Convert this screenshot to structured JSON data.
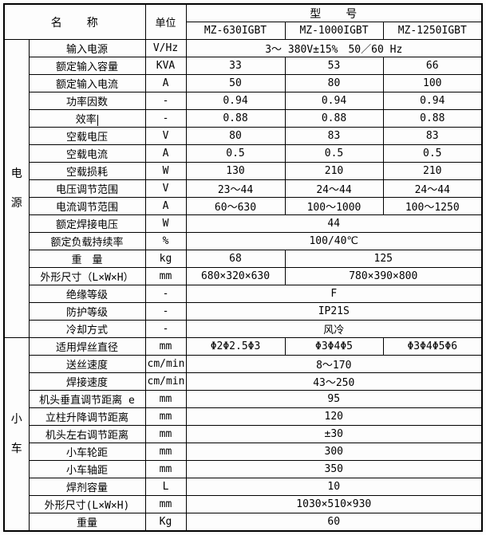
{
  "header": {
    "name_label": "名　　称",
    "unit_label": "单位",
    "model_label": "型　　号",
    "models": [
      "MZ-630IGBT",
      "MZ-1000IGBT",
      "MZ-1250IGBT"
    ]
  },
  "sections": [
    {
      "group": "电源",
      "rows": [
        {
          "name": "输入电源",
          "unit": "V/Hz",
          "values": [
            {
              "text": "3～ 380V±15%　50／60 Hz",
              "span": 3
            }
          ]
        },
        {
          "name": "额定输入容量",
          "unit": "KVA",
          "values": [
            {
              "text": "33",
              "span": 1
            },
            {
              "text": "53",
              "span": 1
            },
            {
              "text": "66",
              "span": 1
            }
          ]
        },
        {
          "name": "额定输入电流",
          "unit": "A",
          "values": [
            {
              "text": "50",
              "span": 1
            },
            {
              "text": "80",
              "span": 1
            },
            {
              "text": "100",
              "span": 1
            }
          ]
        },
        {
          "name": "功率因数",
          "unit": "-",
          "values": [
            {
              "text": "0.94",
              "span": 1
            },
            {
              "text": "0.94",
              "span": 1
            },
            {
              "text": "0.94",
              "span": 1
            }
          ]
        },
        {
          "name": "效率",
          "unit": "-",
          "cursor": true,
          "values": [
            {
              "text": "0.88",
              "span": 1
            },
            {
              "text": "0.88",
              "span": 1
            },
            {
              "text": "0.88",
              "span": 1
            }
          ]
        },
        {
          "name": "空载电压",
          "unit": "V",
          "values": [
            {
              "text": "80",
              "span": 1
            },
            {
              "text": "83",
              "span": 1
            },
            {
              "text": "83",
              "span": 1
            }
          ]
        },
        {
          "name": "空载电流",
          "unit": "A",
          "values": [
            {
              "text": "0.5",
              "span": 1
            },
            {
              "text": "0.5",
              "span": 1
            },
            {
              "text": "0.5",
              "span": 1
            }
          ]
        },
        {
          "name": "空载损耗",
          "unit": "W",
          "values": [
            {
              "text": "130",
              "span": 1
            },
            {
              "text": "210",
              "span": 1
            },
            {
              "text": "210",
              "span": 1
            }
          ]
        },
        {
          "name": "电压调节范围",
          "unit": "V",
          "values": [
            {
              "text": "23～44",
              "span": 1
            },
            {
              "text": "24～44",
              "span": 1
            },
            {
              "text": "24～44",
              "span": 1
            }
          ]
        },
        {
          "name": "电流调节范围",
          "unit": "A",
          "values": [
            {
              "text": "60～630",
              "span": 1
            },
            {
              "text": "100～1000",
              "span": 1
            },
            {
              "text": "100～1250",
              "span": 1
            }
          ]
        },
        {
          "name": "额定焊接电压",
          "unit": "W",
          "values": [
            {
              "text": "44",
              "span": 3
            }
          ]
        },
        {
          "name": "额定负载持续率",
          "unit": "%",
          "values": [
            {
              "text": "100/40℃",
              "span": 3
            }
          ]
        },
        {
          "name": "重　量",
          "unit": "kg",
          "values": [
            {
              "text": "68",
              "span": 1
            },
            {
              "text": "125",
              "span": 2
            }
          ]
        },
        {
          "name": "外形尺寸（L×W×H）",
          "unit": "mm",
          "values": [
            {
              "text": "680×320×630",
              "span": 1
            },
            {
              "text": "780×390×800",
              "span": 2
            }
          ]
        },
        {
          "name": "绝缘等级",
          "unit": "-",
          "values": [
            {
              "text": "F",
              "span": 3
            }
          ]
        },
        {
          "name": "防护等级",
          "unit": "-",
          "values": [
            {
              "text": "IP21S",
              "span": 3
            }
          ]
        },
        {
          "name": "冷却方式",
          "unit": "-",
          "values": [
            {
              "text": "风冷",
              "span": 3
            }
          ]
        }
      ]
    },
    {
      "group": "小车",
      "rows": [
        {
          "name": "适用焊丝直径",
          "unit": "mm",
          "values": [
            {
              "text": "Φ2Φ2.5Φ3",
              "span": 1
            },
            {
              "text": "Φ3Φ4Φ5",
              "span": 1
            },
            {
              "text": "Φ3Φ4Φ5Φ6",
              "span": 1
            }
          ]
        },
        {
          "name": "送丝速度",
          "unit": "cm/min",
          "values": [
            {
              "text": "8～170",
              "span": 3
            }
          ]
        },
        {
          "name": "焊接速度",
          "unit": "cm/min",
          "values": [
            {
              "text": "43～250",
              "span": 3
            }
          ]
        },
        {
          "name": "机头垂直调节距离 e",
          "unit": "mm",
          "values": [
            {
              "text": "95",
              "span": 3
            }
          ]
        },
        {
          "name": "立柱升降调节距离",
          "unit": "mm",
          "values": [
            {
              "text": "120",
              "span": 3
            }
          ]
        },
        {
          "name": "机头左右调节距离",
          "unit": "mm",
          "values": [
            {
              "text": "±30",
              "span": 3
            }
          ]
        },
        {
          "name": "小车轮距",
          "unit": "mm",
          "values": [
            {
              "text": "300",
              "span": 3
            }
          ]
        },
        {
          "name": "小车轴距",
          "unit": "mm",
          "values": [
            {
              "text": "350",
              "span": 3
            }
          ]
        },
        {
          "name": "焊剂容量",
          "unit": "L",
          "values": [
            {
              "text": "10",
              "span": 3
            }
          ]
        },
        {
          "name": "外形尺寸(L×W×H)",
          "unit": "mm",
          "values": [
            {
              "text": "1030×510×930",
              "span": 3
            }
          ]
        },
        {
          "name": "重量",
          "unit": "Kg",
          "values": [
            {
              "text": "60",
              "span": 3
            }
          ]
        }
      ]
    }
  ]
}
